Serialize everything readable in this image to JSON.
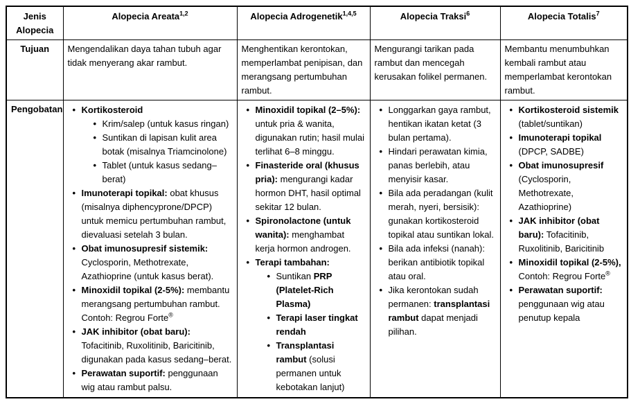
{
  "page": {
    "background_color": "#ffffff",
    "text_color": "#000000",
    "border_color": "#000000"
  },
  "table": {
    "corner_label": "Jenis Alopecia",
    "row_labels": {
      "tujuan": "Tujuan",
      "pengobatan": "Pengobatan"
    },
    "columns": [
      {
        "title": "Alopecia Areata",
        "refs": "1,2",
        "tujuan": "Mengendalikan daya tahan tubuh agar tidak menyerang akar rambut.",
        "pengobatan": [
          {
            "segments": [
              {
                "t": "Kortikosteroid",
                "b": true
              }
            ],
            "sub": [
              {
                "segments": [
                  {
                    "t": "Krim/salep (untuk kasus ringan)"
                  }
                ]
              },
              {
                "segments": [
                  {
                    "t": "Suntikan di lapisan kulit area botak (misalnya Triamcinolone)"
                  }
                ]
              },
              {
                "segments": [
                  {
                    "t": "Tablet (untuk kasus sedang–berat)"
                  }
                ]
              }
            ]
          },
          {
            "segments": [
              {
                "t": "Imunoterapi topikal:",
                "b": true
              },
              {
                "t": " obat khusus (misalnya diphencyprone/DPCP) untuk memicu pertumbuhan rambut, dievaluasi setelah 3 bulan."
              }
            ]
          },
          {
            "segments": [
              {
                "t": "Obat imunosupresif sistemik:",
                "b": true
              },
              {
                "t": " Cyclosporin, Methotrexate, Azathioprine (untuk kasus berat)."
              }
            ]
          },
          {
            "segments": [
              {
                "t": "Minoxidil topikal (2-5%):",
                "b": true
              },
              {
                "t": " membantu merangsang pertumbuhan rambut. Contoh: Regrou Forte"
              },
              {
                "t": "®",
                "sup": true
              }
            ]
          },
          {
            "segments": [
              {
                "t": "JAK inhibitor (obat baru):",
                "b": true
              },
              {
                "t": " Tofacitinib, Ruxolitinib, Baricitinib, digunakan pada kasus sedang–berat."
              }
            ]
          },
          {
            "segments": [
              {
                "t": "Perawatan suportif:",
                "b": true
              },
              {
                "t": " penggunaan wig atau rambut palsu."
              }
            ]
          }
        ]
      },
      {
        "title": "Alopecia Adrogenetik",
        "refs": "1,4,5",
        "tujuan": "Menghentikan kerontokan, memperlambat penipisan, dan merangsang pertumbuhan rambut.",
        "pengobatan": [
          {
            "segments": [
              {
                "t": "Minoxidil topikal (2–5%):",
                "b": true
              },
              {
                "t": " untuk pria & wanita, digunakan rutin; hasil mulai terlihat 6–8 minggu."
              }
            ]
          },
          {
            "segments": [
              {
                "t": "Finasteride oral (khusus pria):",
                "b": true
              },
              {
                "t": " mengurangi kadar hormon DHT, hasil optimal sekitar 12 bulan."
              }
            ]
          },
          {
            "segments": [
              {
                "t": "Spironolactone (untuk wanita):",
                "b": true
              },
              {
                "t": " menghambat kerja hormon androgen."
              }
            ]
          },
          {
            "segments": [
              {
                "t": "Terapi tambahan:",
                "b": true
              }
            ],
            "sub": [
              {
                "segments": [
                  {
                    "t": "Suntikan "
                  },
                  {
                    "t": "PRP (Platelet-Rich Plasma)",
                    "b": true
                  }
                ]
              },
              {
                "segments": [
                  {
                    "t": "Terapi laser tingkat rendah",
                    "b": true
                  }
                ]
              },
              {
                "segments": [
                  {
                    "t": "Transplantasi rambut",
                    "b": true
                  },
                  {
                    "t": " (solusi permanen untuk kebotakan lanjut)"
                  }
                ]
              }
            ]
          }
        ]
      },
      {
        "title": "Alopecia Traksi",
        "refs": "6",
        "tujuan": "Mengurangi tarikan pada rambut dan mencegah kerusakan folikel permanen.",
        "pengobatan": [
          {
            "segments": [
              {
                "t": "Longgarkan gaya rambut, hentikan ikatan ketat (3 bulan pertama)."
              }
            ]
          },
          {
            "segments": [
              {
                "t": "Hindari perawatan kimia, panas berlebih, atau menyisir kasar."
              }
            ]
          },
          {
            "segments": [
              {
                "t": "Bila ada peradangan (kulit merah, nyeri, bersisik): gunakan kortikosteroid topikal atau suntikan lokal."
              }
            ]
          },
          {
            "segments": [
              {
                "t": "Bila ada infeksi (nanah): berikan antibiotik topikal atau oral."
              }
            ]
          },
          {
            "segments": [
              {
                "t": "Jika kerontokan sudah permanen: "
              },
              {
                "t": "transplantasi rambut",
                "b": true
              },
              {
                "t": " dapat menjadi pilihan."
              }
            ]
          }
        ]
      },
      {
        "title": "Alopecia Totalis",
        "refs": "7",
        "tujuan": "Membantu menumbuhkan kembali rambut atau memperlambat kerontokan rambut.",
        "pengobatan": [
          {
            "segments": [
              {
                "t": "Kortikosteroid sistemik",
                "b": true
              },
              {
                "t": " (tablet/suntikan)"
              }
            ]
          },
          {
            "segments": [
              {
                "t": "Imunoterapi topikal",
                "b": true
              },
              {
                "t": " (DPCP, SADBE)"
              }
            ]
          },
          {
            "segments": [
              {
                "t": "Obat imunosupresif",
                "b": true
              },
              {
                "t": " (Cyclosporin, Methotrexate, Azathioprine)"
              }
            ]
          },
          {
            "segments": [
              {
                "t": "JAK inhibitor (obat baru):",
                "b": true
              },
              {
                "t": " Tofacitinib, Ruxolitinib, Baricitinib"
              }
            ]
          },
          {
            "segments": [
              {
                "t": "Minoxidil topikal (2-5%),",
                "b": true
              },
              {
                "t": " Contoh: Regrou Forte"
              },
              {
                "t": "®",
                "sup": true
              }
            ]
          },
          {
            "segments": [
              {
                "t": "Perawatan suportif:",
                "b": true
              },
              {
                "t": " penggunaan wig atau penutup kepala"
              }
            ]
          }
        ]
      }
    ]
  }
}
